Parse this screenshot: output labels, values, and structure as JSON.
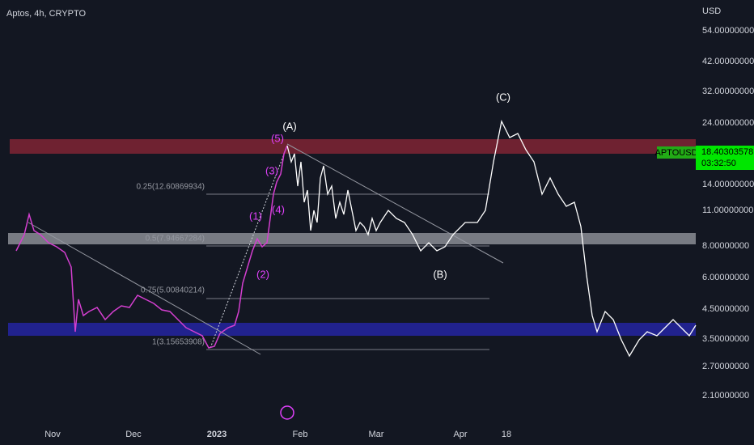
{
  "header": {
    "symbol": "Aptos, 4h, CRYPTO"
  },
  "price_axis": {
    "unit": "USD",
    "labels": [
      "54.00000000",
      "42.00000000",
      "32.00000000",
      "24.00000000",
      "14.00000000",
      "11.00000000",
      "8.00000000",
      "6.00000000",
      "4.50000000",
      "3.50000000",
      "2.70000000",
      "2.10000000"
    ]
  },
  "time_axis": {
    "labels": [
      "Nov",
      "Dec",
      "2023",
      "Feb",
      "Mar",
      "Apr",
      "18"
    ]
  },
  "price_tag": {
    "symbol": "APTOUSD",
    "price": "18.40303578",
    "countdown": "03:32:50"
  },
  "waves": [
    "(A)",
    "(B)",
    "(C)",
    "(1)",
    "(2)",
    "(3)",
    "(4)",
    "(5)"
  ],
  "fib_levels": [
    "0.25(12.60869934)",
    "0.5(7.94667284)",
    "0.75(5.00840214)",
    "1(3.15653908)"
  ]
}
